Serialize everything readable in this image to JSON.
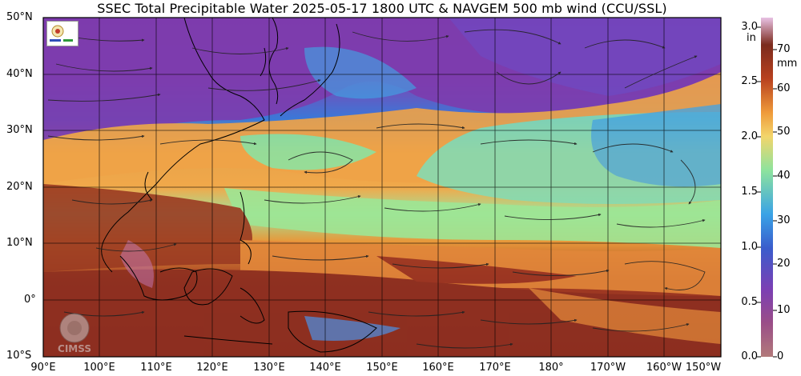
{
  "title": "SSEC Total Precipitable Water  2025-05-17 1800 UTC & NAVGEM 500 mb wind (CCU/SSL)",
  "lat_labels": [
    "50°N",
    "40°N",
    "30°N",
    "20°N",
    "10°N",
    "0°",
    "10°S"
  ],
  "lon_labels": [
    "90°E",
    "100°E",
    "110°E",
    "120°E",
    "130°E",
    "140°E",
    "150°E",
    "160°E",
    "170°E",
    "180°",
    "170°W",
    "160°W",
    "150°W"
  ],
  "colorbar": {
    "inch_unit": "in",
    "mm_unit": "mm",
    "inch_ticks": [
      "3.0",
      "2.5",
      "2.0",
      "1.5",
      "1.0",
      "0.5",
      "0.0"
    ],
    "mm_ticks": [
      "70",
      "60",
      "50",
      "40",
      "30",
      "20",
      "10",
      "0"
    ],
    "colors": [
      "#b87070",
      "#7a2f6e",
      "#8b3fae",
      "#3b57c6",
      "#3aa0e6",
      "#7ee6a6",
      "#f4b84a",
      "#e06a2a",
      "#a0331f",
      "#7a2a1e",
      "#d9b0d8"
    ]
  },
  "logos": {
    "bottom_left": "CIMSS"
  },
  "icons": {
    "top_left_logo": "ssec-logo-icon",
    "bottom_left_logo": "cimss-logo-icon"
  }
}
